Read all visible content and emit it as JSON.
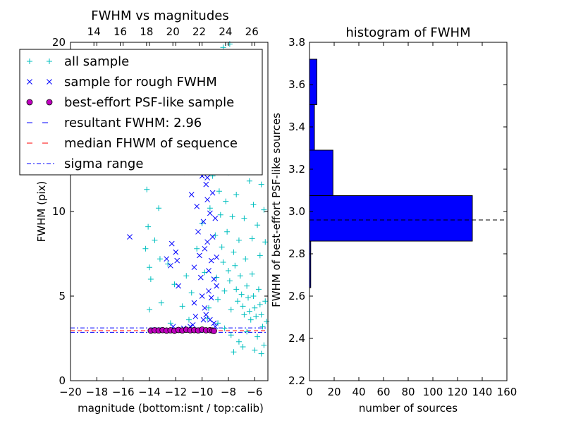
{
  "chart_data": [
    {
      "type": "scatter",
      "title": "FWHM vs magnitudes",
      "xlabel": "magnitude (bottom:isnt / top:calib)",
      "ylabel": "FWHM (pix)",
      "xlim": [
        -20,
        -5
      ],
      "ylim": [
        0,
        20
      ],
      "x_ticks": [
        -20,
        -18,
        -16,
        -14,
        -12,
        -10,
        -8,
        -6
      ],
      "x_tick_labels": [
        "−20",
        "−18",
        "−16",
        "−14",
        "−12",
        "−10",
        "−8",
        "−6"
      ],
      "y_ticks": [
        0,
        5,
        10,
        20
      ],
      "y_tick_labels": [
        "0",
        "5",
        "10",
        "20"
      ],
      "top_axis": {
        "ticks": [
          14,
          16,
          18,
          20,
          22,
          24,
          26
        ],
        "tick_labels": [
          "14",
          "16",
          "18",
          "20",
          "22",
          "24",
          "26"
        ],
        "offset_from_bottom": 32.22
      },
      "grid": false,
      "legend_position": "top-left",
      "legend": [
        {
          "label": "all sample",
          "marker": "plus",
          "color": "#00bfbf"
        },
        {
          "label": "sample for rough FWHM",
          "marker": "x",
          "color": "#0000ff"
        },
        {
          "label": "best-effort PSF-like sample",
          "marker": "circle",
          "color": "#bf00bf"
        },
        {
          "label": "resultant FWHM: 2.96",
          "marker": "dashed",
          "color": "#0000ff"
        },
        {
          "label": "median FHWM of sequence",
          "marker": "dashed",
          "color": "#ff0000"
        },
        {
          "label": "sigma range",
          "marker": "dashdot",
          "color": "#0000ff"
        }
      ],
      "hlines": [
        {
          "name": "resultant FWHM: 2.96",
          "y": 2.96,
          "style": "dashed",
          "color": "#0000ff"
        },
        {
          "name": "median FHWM of sequence",
          "y": 2.96,
          "style": "dashed",
          "color": "#ff0000"
        },
        {
          "name": "sigma range",
          "y": 2.86,
          "style": "dashdot",
          "color": "#0000ff"
        },
        {
          "name": "sigma range",
          "y": 3.12,
          "style": "dashdot",
          "color": "#0000ff"
        }
      ],
      "series": [
        {
          "name": "all sample",
          "marker": "plus",
          "color": "#00bfbf",
          "points": [
            [
              -14.2,
              11.3
            ],
            [
              -13.3,
              10.2
            ],
            [
              -14.1,
              9.1
            ],
            [
              -13.6,
              8.3
            ],
            [
              -14.3,
              7.8
            ],
            [
              -14.0,
              6.7
            ],
            [
              -13.2,
              7.2
            ],
            [
              -12.6,
              6.9
            ],
            [
              -13.9,
              6.0
            ],
            [
              -12.1,
              5.7
            ],
            [
              -14.0,
              4.2
            ],
            [
              -13.1,
              4.6
            ],
            [
              -11.5,
              4.4
            ],
            [
              -11.2,
              6.2
            ],
            [
              -10.8,
              5.2
            ],
            [
              -10.4,
              7.8
            ],
            [
              -11.0,
              3.6
            ],
            [
              -12.4,
              3.4
            ],
            [
              -10.0,
              9.3
            ],
            [
              -9.8,
              6.4
            ],
            [
              -9.5,
              4.3
            ],
            [
              -9.6,
              3.7
            ],
            [
              -9.4,
              10.2
            ],
            [
              -9.2,
              12.1
            ],
            [
              -9.0,
              8.6
            ],
            [
              -8.9,
              6.1
            ],
            [
              -8.8,
              4.8
            ],
            [
              -8.7,
              11.2
            ],
            [
              -8.6,
              9.8
            ],
            [
              -8.5,
              7.9
            ],
            [
              -8.4,
              7.0
            ],
            [
              -8.3,
              5.3
            ],
            [
              -8.2,
              10.6
            ],
            [
              -8.1,
              8.8
            ],
            [
              -8.0,
              6.5
            ],
            [
              -7.9,
              5.9
            ],
            [
              -7.8,
              4.2
            ],
            [
              -7.7,
              9.7
            ],
            [
              -7.6,
              7.6
            ],
            [
              -7.5,
              6.8
            ],
            [
              -7.4,
              5.4
            ],
            [
              -7.3,
              4.7
            ],
            [
              -7.2,
              8.3
            ],
            [
              -7.1,
              6.2
            ],
            [
              -7.0,
              5.1
            ],
            [
              -6.9,
              4.4
            ],
            [
              -6.8,
              3.9
            ],
            [
              -6.7,
              7.2
            ],
            [
              -6.6,
              5.6
            ],
            [
              -6.5,
              4.9
            ],
            [
              -6.4,
              4.1
            ],
            [
              -6.3,
              3.6
            ],
            [
              -6.2,
              6.3
            ],
            [
              -6.1,
              5.0
            ],
            [
              -6.0,
              4.3
            ],
            [
              -5.9,
              3.8
            ],
            [
              -5.8,
              2.6
            ],
            [
              -5.7,
              5.4
            ],
            [
              -5.6,
              4.5
            ],
            [
              -5.5,
              3.9
            ],
            [
              -5.4,
              3.2
            ],
            [
              -5.3,
              2.1
            ],
            [
              -5.2,
              4.7
            ],
            [
              -5.1,
              3.5
            ],
            [
              -8.8,
              3.4
            ],
            [
              -8.3,
              3.1
            ],
            [
              -7.8,
              2.7
            ],
            [
              -7.2,
              2.3
            ],
            [
              -6.6,
              2.9
            ],
            [
              -6.0,
              1.8
            ],
            [
              -5.5,
              1.6
            ],
            [
              -7.6,
              1.7
            ],
            [
              -6.9,
              2.0
            ],
            [
              -8.6,
              13.8
            ],
            [
              -8.0,
              12.3
            ],
            [
              -7.4,
              11.0
            ],
            [
              -6.8,
              9.6
            ],
            [
              -6.2,
              8.4
            ],
            [
              -5.6,
              7.4
            ],
            [
              -5.3,
              10.1
            ],
            [
              -5.2,
              8.2
            ],
            [
              -9.0,
              14.6
            ],
            [
              -8.4,
              19.7
            ],
            [
              -7.9,
              19.9
            ],
            [
              -9.1,
              17.6
            ],
            [
              -8.7,
              16.1
            ],
            [
              -7.7,
              15.4
            ],
            [
              -6.4,
              11.8
            ],
            [
              -5.8,
              9.2
            ],
            [
              -7.0,
              13.1
            ],
            [
              -6.6,
              14.2
            ],
            [
              -8.9,
              18.8
            ],
            [
              -9.3,
              14.8
            ],
            [
              -6.1,
              10.4
            ],
            [
              -5.5,
              11.6
            ],
            [
              -7.3,
              17.3
            ]
          ]
        },
        {
          "name": "sample for rough FWHM",
          "marker": "x",
          "color": "#0000ff",
          "points": [
            [
              -15.5,
              8.5
            ],
            [
              -12.7,
              7.2
            ],
            [
              -12.3,
              8.1
            ],
            [
              -12.0,
              7.6
            ],
            [
              -11.2,
              12.3
            ],
            [
              -10.8,
              11.0
            ],
            [
              -10.6,
              6.7
            ],
            [
              -10.6,
              4.6
            ],
            [
              -10.5,
              3.8
            ],
            [
              -10.4,
              10.3
            ],
            [
              -10.3,
              8.8
            ],
            [
              -10.2,
              7.4
            ],
            [
              -10.1,
              6.1
            ],
            [
              -10.0,
              5.0
            ],
            [
              -10.0,
              12.1
            ],
            [
              -9.9,
              9.4
            ],
            [
              -9.8,
              7.8
            ],
            [
              -9.8,
              4.3
            ],
            [
              -9.7,
              11.6
            ],
            [
              -9.6,
              10.7
            ],
            [
              -9.6,
              8.2
            ],
            [
              -9.5,
              6.5
            ],
            [
              -9.5,
              5.3
            ],
            [
              -9.4,
              3.6
            ],
            [
              -9.4,
              9.9
            ],
            [
              -9.3,
              7.1
            ],
            [
              -9.3,
              4.9
            ],
            [
              -9.2,
              11.1
            ],
            [
              -9.2,
              8.5
            ],
            [
              -9.1,
              6.0
            ],
            [
              -9.1,
              3.4
            ],
            [
              -9.0,
              12.5
            ],
            [
              -9.0,
              9.6
            ],
            [
              -8.9,
              7.3
            ],
            [
              -8.9,
              5.6
            ],
            [
              -9.8,
              12.4
            ],
            [
              -9.6,
              12.0
            ],
            [
              -9.4,
              12.4
            ],
            [
              -11.9,
              7.1
            ],
            [
              -12.4,
              6.8
            ],
            [
              -12.2,
              3.2
            ],
            [
              -11.4,
              3.1
            ],
            [
              -10.9,
              3.2
            ],
            [
              -13.5,
              3.0
            ],
            [
              -11.8,
              5.6
            ],
            [
              -10.7,
              3.3
            ],
            [
              -9.9,
              3.6
            ],
            [
              -9.7,
              3.9
            ],
            [
              -9.0,
              3.2
            ]
          ]
        },
        {
          "name": "best-effort PSF-like sample",
          "marker": "circle",
          "color": "#bf00bf",
          "points": [
            [
              -13.9,
              2.96
            ],
            [
              -13.6,
              2.98
            ],
            [
              -13.3,
              2.97
            ],
            [
              -13.0,
              2.99
            ],
            [
              -12.7,
              2.96
            ],
            [
              -12.4,
              2.98
            ],
            [
              -12.1,
              2.95
            ],
            [
              -11.8,
              3.0
            ],
            [
              -11.5,
              2.97
            ],
            [
              -11.2,
              3.01
            ],
            [
              -10.9,
              2.98
            ],
            [
              -10.6,
              2.99
            ],
            [
              -10.3,
              2.97
            ],
            [
              -10.0,
              3.02
            ],
            [
              -9.7,
              2.98
            ],
            [
              -9.4,
              2.99
            ],
            [
              -9.2,
              2.96
            ],
            [
              -9.1,
              2.94
            ]
          ]
        }
      ]
    },
    {
      "type": "bar",
      "orientation": "horizontal",
      "title": "histogram of FWHM",
      "xlabel": "number of sources",
      "ylabel": "FWHM of best-effort PSF-like sources",
      "xlim": [
        0,
        160
      ],
      "ylim": [
        2.2,
        3.8
      ],
      "x_ticks": [
        0,
        20,
        40,
        60,
        80,
        100,
        120,
        140,
        160
      ],
      "x_tick_labels": [
        "0",
        "20",
        "40",
        "60",
        "80",
        "100",
        "120",
        "140",
        "160"
      ],
      "y_ticks": [
        2.2,
        2.4,
        2.6,
        2.8,
        3.0,
        3.2,
        3.4,
        3.6,
        3.8
      ],
      "y_tick_labels": [
        "2.2",
        "2.4",
        "2.6",
        "2.8",
        "3.0",
        "3.2",
        "3.4",
        "3.6",
        "3.8"
      ],
      "grid": false,
      "color": "#0000ff",
      "bins": [
        {
          "from": 2.64,
          "to": 2.86,
          "count": 1
        },
        {
          "from": 2.86,
          "to": 3.075,
          "count": 132
        },
        {
          "from": 3.075,
          "to": 3.29,
          "count": 19
        },
        {
          "from": 3.29,
          "to": 3.505,
          "count": 4
        },
        {
          "from": 3.505,
          "to": 3.72,
          "count": 6
        }
      ],
      "hline": {
        "y": 2.96,
        "style": "dashed",
        "color": "#000000"
      }
    }
  ]
}
